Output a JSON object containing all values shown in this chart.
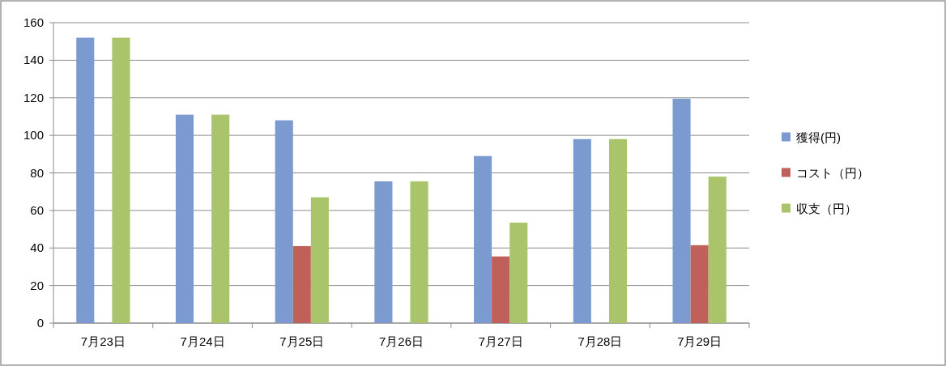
{
  "chart_data": {
    "type": "bar",
    "categories": [
      "7月23日",
      "7月24日",
      "7月25日",
      "7月26日",
      "7月27日",
      "7月28日",
      "7月29日"
    ],
    "series": [
      {
        "name": "獲得(円)",
        "color": "#7b9bd0",
        "values": [
          152,
          111,
          108,
          75.5,
          89,
          98,
          119.5
        ]
      },
      {
        "name": "コスト（円）",
        "color": "#c0605a",
        "values": [
          null,
          null,
          41,
          null,
          35.5,
          null,
          41.5
        ]
      },
      {
        "name": "収支（円）",
        "color": "#a9c46a",
        "values": [
          152,
          111,
          67,
          75.5,
          53.5,
          98,
          78
        ]
      }
    ],
    "ylim": [
      0,
      160
    ],
    "yticks": [
      0,
      20,
      40,
      60,
      80,
      100,
      120,
      140,
      160
    ],
    "grid": "y",
    "legend": "right"
  }
}
